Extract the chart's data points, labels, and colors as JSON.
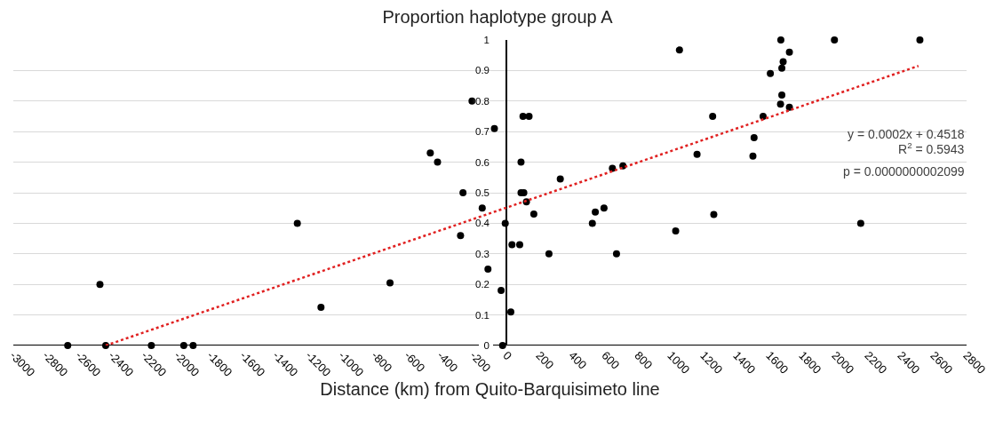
{
  "chart_data": {
    "type": "scatter",
    "title": "Proportion haplotype group A",
    "xlabel": "Distance (km) from Quito-Barquisimeto line",
    "xlim": [
      -3000,
      2800
    ],
    "xticks": [
      -3000,
      -2800,
      -2600,
      -2400,
      -2200,
      -2000,
      -1800,
      -1600,
      -1400,
      -1200,
      -1000,
      -800,
      -600,
      -400,
      -200,
      0,
      200,
      400,
      600,
      800,
      1000,
      1200,
      1400,
      1600,
      1800,
      2000,
      2200,
      2400,
      2600,
      2800
    ],
    "ylim": [
      0,
      1
    ],
    "yticks": [
      0,
      0.1,
      0.2,
      0.3,
      0.4,
      0.5,
      0.6,
      0.7,
      0.8,
      0.9,
      1
    ],
    "grid": "y",
    "series": [
      {
        "color": "#000000",
        "marker": "circle",
        "x": [
          -2669,
          -2473,
          -2438,
          -2160,
          -1963,
          -1906,
          -1272,
          -1128,
          -708,
          -463,
          -419,
          -279,
          -264,
          -209,
          -147,
          -112,
          -73,
          -32,
          -23,
          -7,
          27,
          34,
          81,
          89,
          89,
          101,
          106,
          122,
          138,
          167,
          259,
          328,
          523,
          541,
          594,
          645,
          670,
          709,
          1030,
          1053,
          1160,
          1255,
          1262,
          1500,
          1507,
          1562,
          1606,
          1668,
          1670,
          1676,
          1676,
          1684,
          1722,
          1722,
          1996,
          2156,
          2516
        ],
        "values": [
          0,
          0.2,
          0,
          0,
          0,
          0,
          0.4,
          0.125,
          0.205,
          0.63,
          0.6,
          0.36,
          0.5,
          0.8,
          0.45,
          0.25,
          0.71,
          0.18,
          0,
          0.4,
          0.11,
          0.33,
          0.33,
          0.6,
          0.5,
          0.75,
          0.5,
          0.47,
          0.75,
          0.43,
          0.3,
          0.545,
          0.4,
          0.437,
          0.45,
          0.58,
          0.3,
          0.588,
          0.375,
          0.967,
          0.626,
          0.75,
          0.429,
          0.62,
          0.68,
          0.75,
          0.89,
          0.79,
          1,
          0.908,
          0.82,
          0.929,
          0.96,
          0.78,
          1,
          0.4,
          1
        ]
      },
      {
        "type": "line",
        "color": "#e02020",
        "marker": "none",
        "line_style": "dotted",
        "x": [
          -2438,
          2507
        ],
        "values": [
          0,
          0.915
        ]
      }
    ],
    "annotations": [
      "y = 0.0002x + 0.4518",
      "R$^{2}$ = 0.5943",
      "p = 0.0000000002099"
    ]
  }
}
